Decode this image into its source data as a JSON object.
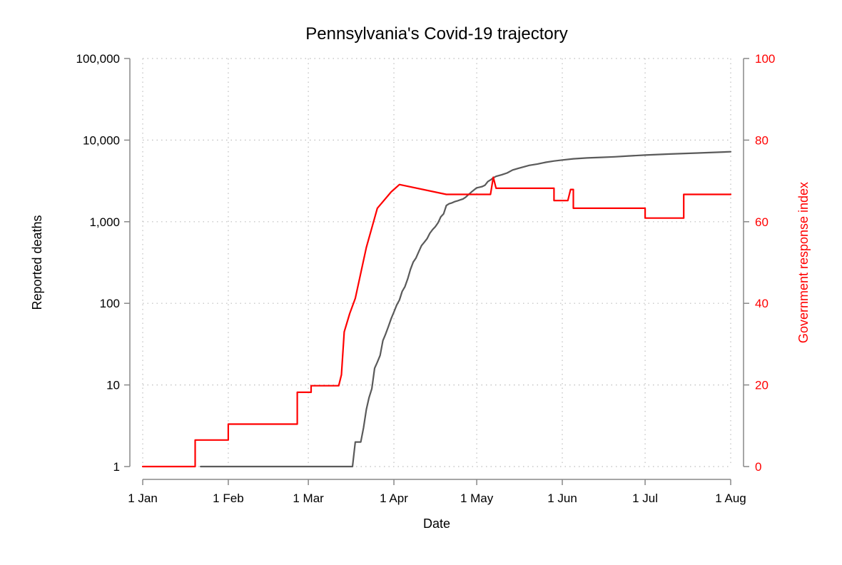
{
  "chart_data": {
    "type": "line",
    "title": "Pennsylvania's Covid-19 trajectory",
    "xlabel": "Date",
    "ylabel_left": "Reported deaths",
    "ylabel_right": "Government response index",
    "x_ticks": [
      "1 Jan",
      "1 Feb",
      "1 Mar",
      "1 Apr",
      "1 May",
      "1 Jun",
      "1 Jul",
      "1 Aug"
    ],
    "x_tick_dates": [
      "2020-01-01",
      "2020-02-01",
      "2020-03-01",
      "2020-04-01",
      "2020-05-01",
      "2020-06-01",
      "2020-07-01",
      "2020-08-01"
    ],
    "xlim": [
      "2020-01-01",
      "2020-08-01"
    ],
    "y_left_scale": "log",
    "y_left_ticks": [
      {
        "value": 1,
        "label": "1"
      },
      {
        "value": 10,
        "label": "10"
      },
      {
        "value": 100,
        "label": "100"
      },
      {
        "value": 1000,
        "label": "1,000"
      },
      {
        "value": 10000,
        "label": "10,000"
      },
      {
        "value": 100000,
        "label": "100,000"
      }
    ],
    "y_left_lim": [
      1,
      100000
    ],
    "y_right_ticks": [
      0,
      20,
      40,
      60,
      80,
      100
    ],
    "y_right_lim": [
      0,
      100
    ],
    "grid": "dotted",
    "colors": {
      "deaths": "#5a5a5a",
      "response": "#ff0000",
      "axis_left": "#888888",
      "axis_right": "#888888",
      "right_label": "#ff0000",
      "grid": "#bdbdbd"
    },
    "series": [
      {
        "key": "deaths",
        "axis": "left",
        "x": [
          "2020-01-22",
          "2020-03-17",
          "2020-03-18",
          "2020-03-20",
          "2020-03-21",
          "2020-03-22",
          "2020-03-23",
          "2020-03-24",
          "2020-03-25",
          "2020-03-26",
          "2020-03-27",
          "2020-03-28",
          "2020-03-29",
          "2020-03-30",
          "2020-03-31",
          "2020-04-01",
          "2020-04-02",
          "2020-04-03",
          "2020-04-04",
          "2020-04-05",
          "2020-04-06",
          "2020-04-07",
          "2020-04-08",
          "2020-04-09",
          "2020-04-10",
          "2020-04-11",
          "2020-04-12",
          "2020-04-13",
          "2020-04-14",
          "2020-04-15",
          "2020-04-16",
          "2020-04-17",
          "2020-04-18",
          "2020-04-19",
          "2020-04-20",
          "2020-04-21",
          "2020-04-22",
          "2020-04-23",
          "2020-04-24",
          "2020-04-25",
          "2020-04-26",
          "2020-04-27",
          "2020-04-28",
          "2020-04-29",
          "2020-04-30",
          "2020-05-01",
          "2020-05-02",
          "2020-05-03",
          "2020-05-04",
          "2020-05-05",
          "2020-05-06",
          "2020-05-07",
          "2020-05-08",
          "2020-05-10",
          "2020-05-12",
          "2020-05-14",
          "2020-05-16",
          "2020-05-18",
          "2020-05-20",
          "2020-05-23",
          "2020-05-26",
          "2020-05-29",
          "2020-06-01",
          "2020-06-05",
          "2020-06-10",
          "2020-06-15",
          "2020-06-20",
          "2020-06-25",
          "2020-07-01",
          "2020-07-10",
          "2020-07-20",
          "2020-08-01"
        ],
        "values": [
          1,
          1,
          2,
          2,
          3,
          5,
          7,
          9,
          16,
          19,
          23,
          35,
          42,
          52,
          65,
          78,
          95,
          110,
          140,
          160,
          200,
          260,
          320,
          360,
          430,
          510,
          560,
          620,
          720,
          800,
          870,
          970,
          1150,
          1250,
          1580,
          1660,
          1700,
          1760,
          1800,
          1850,
          1900,
          2000,
          2150,
          2300,
          2450,
          2600,
          2650,
          2700,
          2800,
          3100,
          3250,
          3450,
          3600,
          3750,
          3950,
          4300,
          4500,
          4700,
          4900,
          5100,
          5350,
          5550,
          5700,
          5900,
          6050,
          6150,
          6250,
          6400,
          6550,
          6750,
          6950,
          7200
        ]
      },
      {
        "key": "response",
        "axis": "right",
        "x": [
          "2020-01-01",
          "2020-01-20",
          "2020-01-20",
          "2020-02-01",
          "2020-02-01",
          "2020-02-26",
          "2020-02-26",
          "2020-03-02",
          "2020-03-02",
          "2020-03-12",
          "2020-03-13",
          "2020-03-14",
          "2020-03-14",
          "2020-03-16",
          "2020-03-16",
          "2020-03-18",
          "2020-03-18",
          "2020-03-22",
          "2020-03-22",
          "2020-03-26",
          "2020-03-26",
          "2020-03-31",
          "2020-03-31",
          "2020-04-03",
          "2020-04-03",
          "2020-04-20",
          "2020-04-20",
          "2020-05-06",
          "2020-05-07",
          "2020-05-08",
          "2020-05-29",
          "2020-05-29",
          "2020-06-03",
          "2020-06-04",
          "2020-06-05",
          "2020-06-05",
          "2020-07-01",
          "2020-07-01",
          "2020-07-15",
          "2020-07-15",
          "2020-08-01"
        ],
        "values": [
          0,
          0,
          6.5,
          6.5,
          10.4,
          10.4,
          18.2,
          18.2,
          19.8,
          19.8,
          22.5,
          33.0,
          33.0,
          37.5,
          37.5,
          41.2,
          41.2,
          53.7,
          53.7,
          63.3,
          63.3,
          67.3,
          67.3,
          69.1,
          69.1,
          66.7,
          66.7,
          66.7,
          70.9,
          68.2,
          68.2,
          65.2,
          65.2,
          67.9,
          67.9,
          63.3,
          63.3,
          60.9,
          60.9,
          66.7,
          66.7
        ]
      }
    ]
  }
}
